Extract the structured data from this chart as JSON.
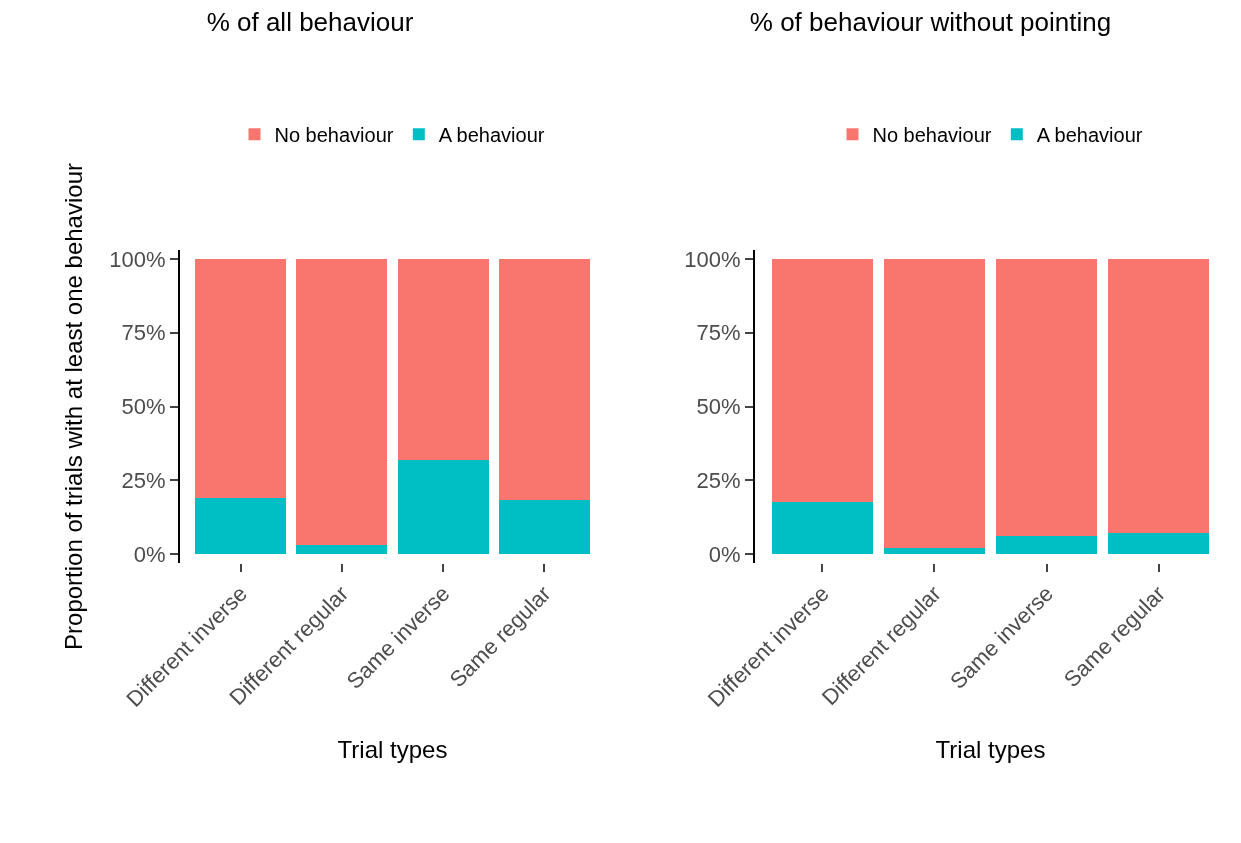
{
  "chart_data": [
    {
      "type": "bar",
      "title": "% of all behaviour",
      "xlabel": "Trial types",
      "ylabel": "Proportion of trials with at least one behaviour",
      "categories": [
        "Different inverse",
        "Different regular",
        "Same inverse",
        "Same regular"
      ],
      "stacked": true,
      "legend": "top",
      "grid": false,
      "ylim": [
        -3,
        103
      ],
      "yticks": [
        {
          "value": 0,
          "label": "0%"
        },
        {
          "value": 25,
          "label": "25%"
        },
        {
          "value": 50,
          "label": "50%"
        },
        {
          "value": 75,
          "label": "75%"
        },
        {
          "value": 100,
          "label": "100%"
        }
      ],
      "series": [
        {
          "name": "A behaviour",
          "color": "#00bfc4",
          "values": [
            19,
            3,
            32,
            18.5
          ]
        },
        {
          "name": "No behaviour",
          "color": "#f8766d",
          "values": [
            81,
            97,
            68,
            81.5
          ]
        }
      ]
    },
    {
      "type": "bar",
      "title": "% of behaviour without pointing",
      "xlabel": "Trial types",
      "categories": [
        "Different inverse",
        "Different regular",
        "Same inverse",
        "Same regular"
      ],
      "stacked": true,
      "legend": "top",
      "grid": false,
      "ylim": [
        -3,
        103
      ],
      "yticks": [
        {
          "value": 0,
          "label": "0%"
        },
        {
          "value": 25,
          "label": "25%"
        },
        {
          "value": 50,
          "label": "50%"
        },
        {
          "value": 75,
          "label": "75%"
        },
        {
          "value": 100,
          "label": "100%"
        }
      ],
      "series": [
        {
          "name": "A behaviour",
          "color": "#00bfc4",
          "values": [
            17.5,
            2,
            6,
            7
          ]
        },
        {
          "name": "No behaviour",
          "color": "#f8766d",
          "values": [
            82.5,
            98,
            94,
            93
          ]
        }
      ]
    }
  ]
}
